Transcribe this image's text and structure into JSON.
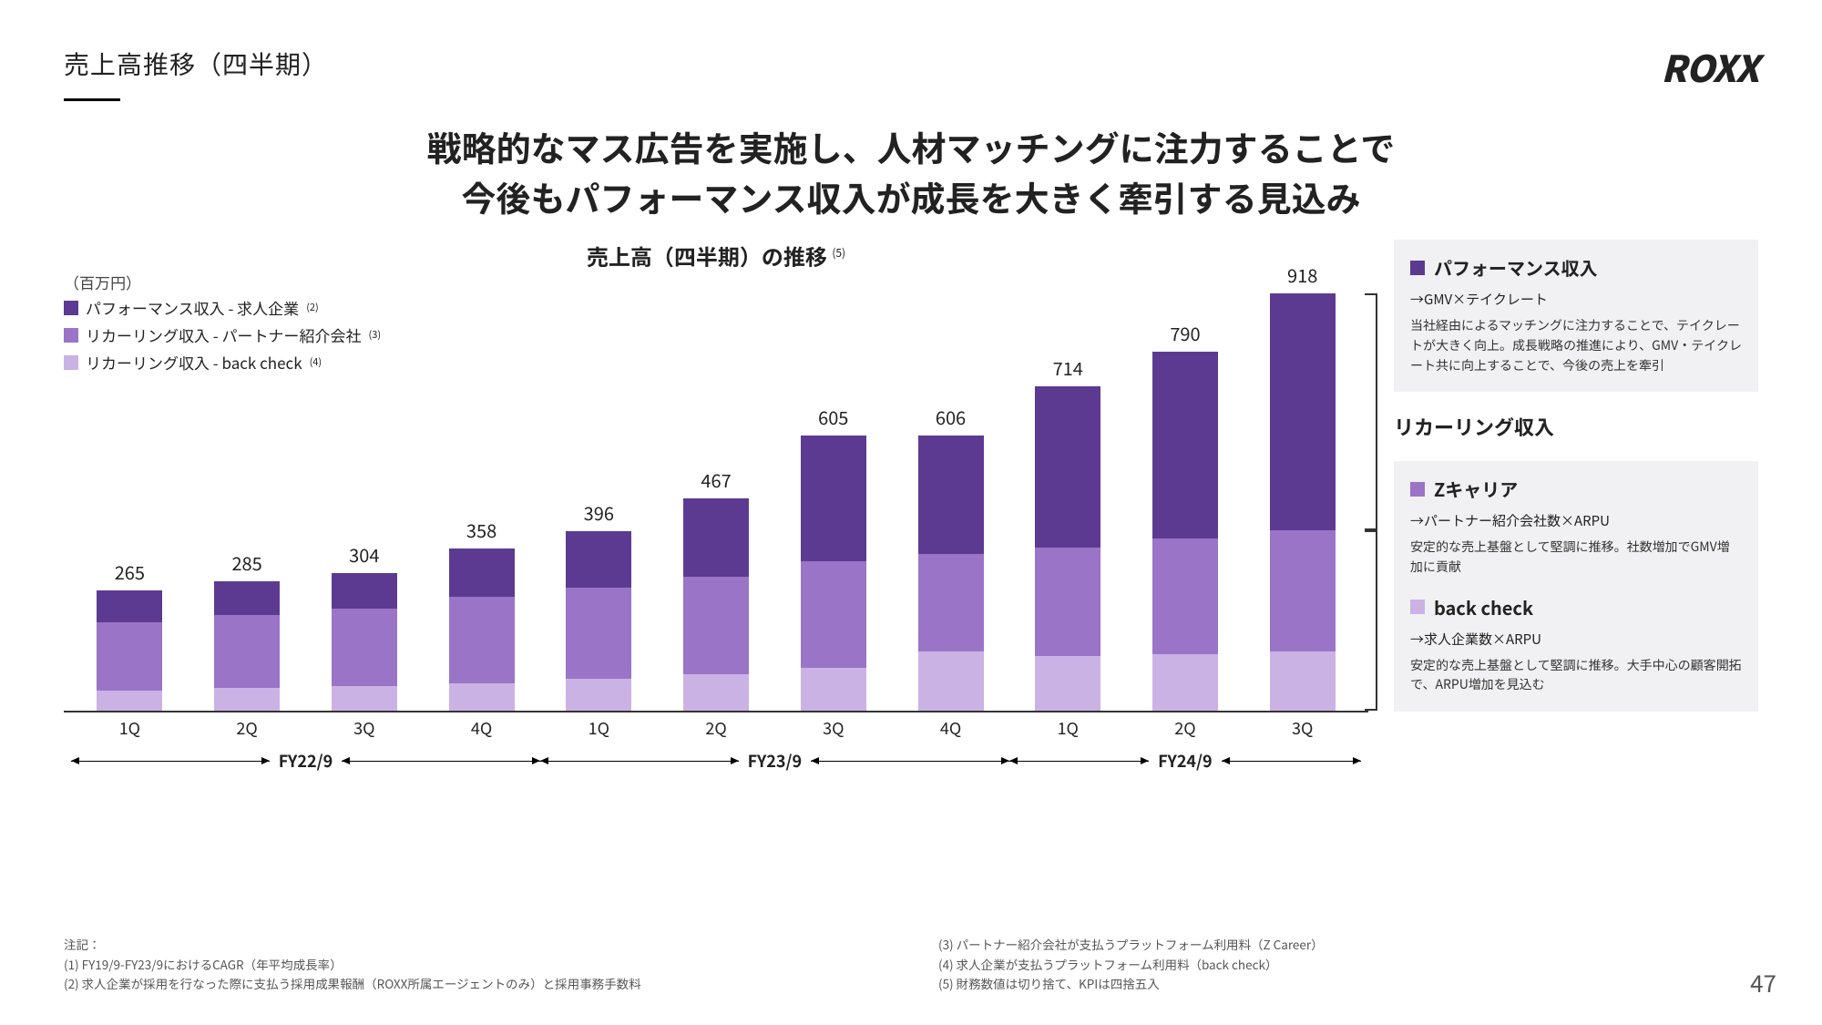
{
  "page_title": "売上高推移（四半期）",
  "logo": "ROXX",
  "headline_line1": "戦略的なマス広告を実施し、人材マッチングに注力することで",
  "headline_line2": "今後もパフォーマンス収入が成長を大きく牽引する見込み",
  "chart": {
    "title": "売上高（四半期）の推移",
    "title_sup": "(5)",
    "unit": "（百万円）",
    "y_max": 950,
    "colors": {
      "performance": "#5d3a92",
      "recurring_partner": "#9a74c7",
      "recurring_backcheck": "#cbb2e4",
      "background": "#ffffff",
      "axis": "#333333"
    },
    "legend": [
      {
        "label": "パフォーマンス収入 - 求人企業",
        "sup": "(2)",
        "color": "#5d3a92"
      },
      {
        "label": "リカーリング収入 - パートナー紹介会社",
        "sup": "(3)",
        "color": "#9a74c7"
      },
      {
        "label": "リカーリング収入 - back check",
        "sup": "(4)",
        "color": "#cbb2e4"
      }
    ],
    "groups": [
      {
        "name": "FY22/9",
        "count": 4
      },
      {
        "name": "FY23/9",
        "count": 4
      },
      {
        "name": "FY24/9",
        "count": 3
      }
    ],
    "bars": [
      {
        "q": "1Q",
        "total": 265,
        "seg": {
          "backcheck": 45,
          "partner": 150,
          "performance": 70
        }
      },
      {
        "q": "2Q",
        "total": 285,
        "seg": {
          "backcheck": 50,
          "partner": 160,
          "performance": 75
        }
      },
      {
        "q": "3Q",
        "total": 304,
        "seg": {
          "backcheck": 55,
          "partner": 170,
          "performance": 79
        }
      },
      {
        "q": "4Q",
        "total": 358,
        "seg": {
          "backcheck": 60,
          "partner": 190,
          "performance": 108
        }
      },
      {
        "q": "1Q",
        "total": 396,
        "seg": {
          "backcheck": 70,
          "partner": 200,
          "performance": 126
        }
      },
      {
        "q": "2Q",
        "total": 467,
        "seg": {
          "backcheck": 80,
          "partner": 215,
          "performance": 172
        }
      },
      {
        "q": "3Q",
        "total": 605,
        "seg": {
          "backcheck": 95,
          "partner": 235,
          "performance": 275
        }
      },
      {
        "q": "4Q",
        "total": 606,
        "seg": {
          "backcheck": 130,
          "partner": 215,
          "performance": 261
        }
      },
      {
        "q": "1Q",
        "total": 714,
        "seg": {
          "backcheck": 120,
          "partner": 240,
          "performance": 354
        }
      },
      {
        "q": "2Q",
        "total": 790,
        "seg": {
          "backcheck": 125,
          "partner": 255,
          "performance": 410
        }
      },
      {
        "q": "3Q",
        "total": 918,
        "seg": {
          "backcheck": 130,
          "partner": 268,
          "performance": 520
        }
      }
    ]
  },
  "side": {
    "box1": {
      "swatch": "#5d3a92",
      "title": "パフォーマンス収入",
      "sub": "→GMV×テイクレート",
      "desc": "当社経由によるマッチングに注力することで、テイクレートが大きく向上。成長戦略の推進により、GMV・テイクレート共に向上することで、今後の売上を牽引"
    },
    "heading2": "リカーリング収入",
    "box2a": {
      "swatch": "#9a74c7",
      "title": "Zキャリア",
      "sub": "→パートナー紹介会社数×ARPU",
      "desc": "安定的な売上基盤として堅調に推移。社数増加でGMV増加に貢献"
    },
    "box2b": {
      "swatch": "#cbb2e4",
      "title": "back check",
      "sub": "→求人企業数×ARPU",
      "desc": "安定的な売上基盤として堅調に推移。大手中心の顧客開拓で、ARPU増加を見込む"
    }
  },
  "notes": {
    "heading": "注記：",
    "left": [
      "(1) FY19/9-FY23/9におけるCAGR（年平均成長率）",
      "(2) 求人企業が採用を行なった際に支払う採用成果報酬（ROXX所属エージェントのみ）と採用事務手数料"
    ],
    "right": [
      "(3) パートナー紹介会社が支払うプラットフォーム利用料（Z Career）",
      "(4) 求人企業が支払うプラットフォーム利用料（back check）",
      "(5) 財務数値は切り捨て、KPIは四捨五入"
    ]
  },
  "page_number": "47"
}
